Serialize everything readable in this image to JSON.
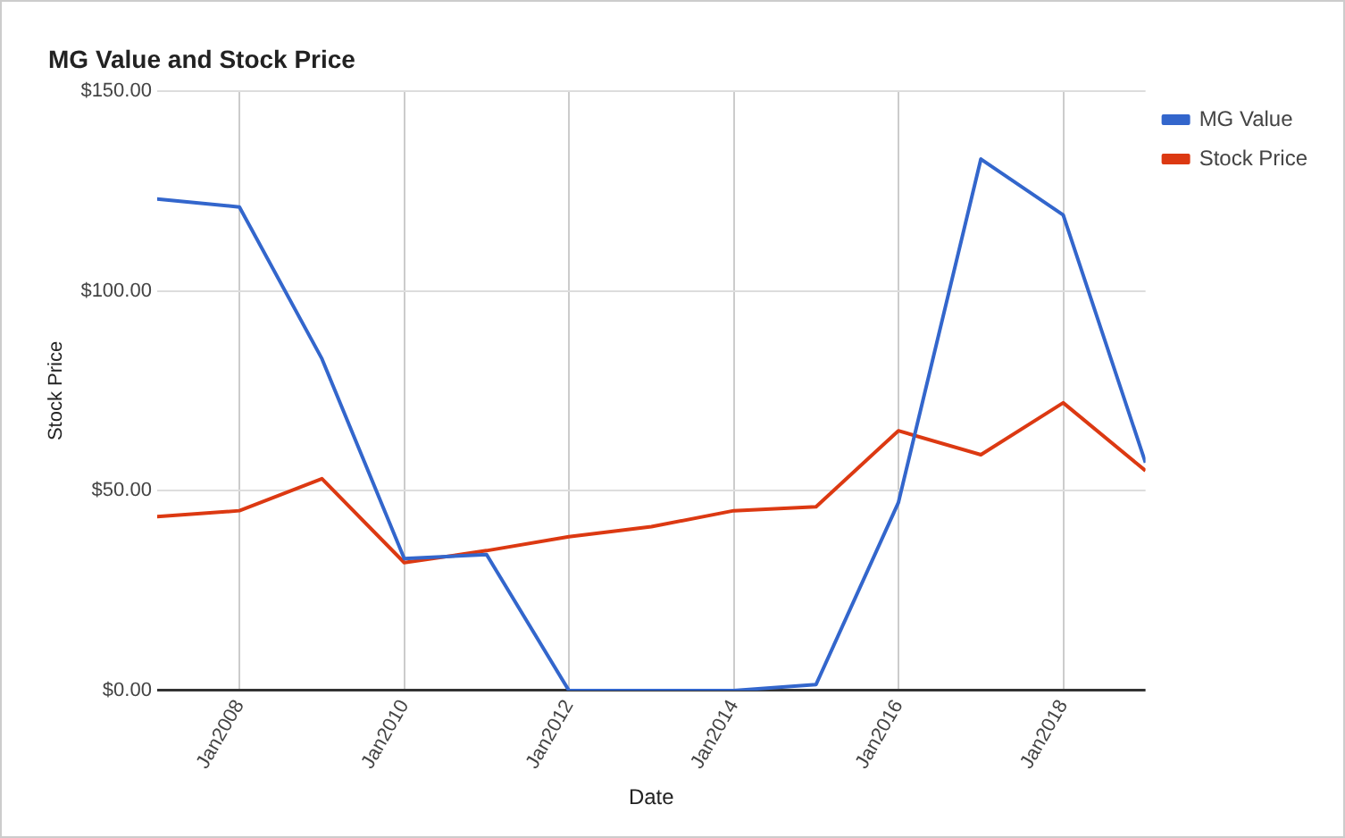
{
  "chart_data": {
    "type": "line",
    "title": "MG Value and Stock Price",
    "xlabel": "Date",
    "ylabel": "Stock Price",
    "x": [
      "2006-12-31",
      "2007-12-31",
      "2008-12-31",
      "2009-12-31",
      "2010-12-31",
      "2011-12-31",
      "2012-12-31",
      "2013-12-31",
      "2014-12-31",
      "2015-12-31",
      "2016-12-31",
      "2017-12-31",
      "2018-12-31"
    ],
    "series": [
      {
        "name": "MG Value",
        "color": "#3366cc",
        "values": [
          123,
          121,
          83,
          33,
          34,
          0,
          0,
          0,
          1.5,
          47,
          133,
          119,
          57
        ]
      },
      {
        "name": "Stock Price",
        "color": "#dc3912",
        "values": [
          43.5,
          45,
          53,
          32,
          35,
          38.5,
          41,
          45,
          46,
          65,
          59,
          72,
          55
        ]
      }
    ],
    "xlim": [
      "2006-12-31",
      "2018-12-31"
    ],
    "xticks": [
      {
        "value": "2008-01-01",
        "label": "Jan2008"
      },
      {
        "value": "2010-01-01",
        "label": "Jan2010"
      },
      {
        "value": "2012-01-01",
        "label": "Jan2012"
      },
      {
        "value": "2014-01-01",
        "label": "Jan2014"
      },
      {
        "value": "2016-01-01",
        "label": "Jan2016"
      },
      {
        "value": "2018-01-01",
        "label": "Jan2018"
      }
    ],
    "ylim": [
      0,
      150
    ],
    "yticks": [
      {
        "value": 0,
        "label": "$0.00"
      },
      {
        "value": 50,
        "label": "$50.00"
      },
      {
        "value": 100,
        "label": "$100.00"
      },
      {
        "value": 150,
        "label": "$150.00"
      }
    ],
    "grid": true,
    "legend": "top right",
    "marker": "none",
    "line_style": "solid"
  }
}
